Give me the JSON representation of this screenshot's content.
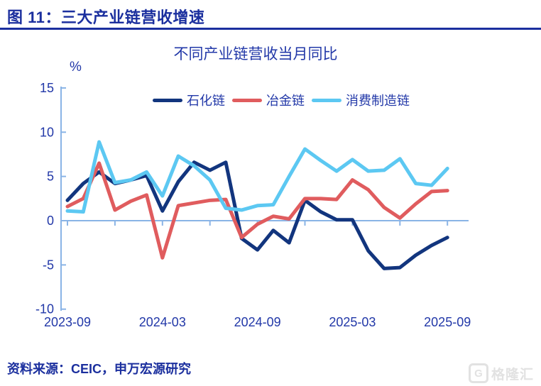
{
  "header": {
    "title": "图 11：三大产业链营收增速"
  },
  "chart": {
    "title": "不同产业链营收当月同比",
    "unit_label": "%"
  },
  "footer": {
    "source": "资料来源：CEIC，申万宏源研究",
    "watermark_icon": "G",
    "watermark_text": "格隆汇"
  },
  "chart_data": {
    "type": "line",
    "title": "不同产业链营收当月同比",
    "ylabel": "%",
    "ylim": [
      -10,
      15
    ],
    "y_ticks": [
      15,
      10,
      5,
      0,
      -5,
      -10
    ],
    "x": [
      "2023-09",
      "2023-10",
      "2023-11",
      "2023-12",
      "2024-01",
      "2024-02",
      "2024-03",
      "2024-04",
      "2024-05",
      "2024-06",
      "2024-07",
      "2024-08",
      "2024-09",
      "2024-10",
      "2024-11",
      "2024-12",
      "2025-01",
      "2025-02",
      "2025-03",
      "2025-04",
      "2025-05",
      "2025-06",
      "2025-07",
      "2025-08",
      "2025-09"
    ],
    "x_tick_label_indices": [
      0,
      6,
      12,
      18,
      24
    ],
    "x_tick_labels": [
      "2023-09",
      "2024-03",
      "2024-09",
      "2025-03",
      "2025-09"
    ],
    "minor_tick_every": 3,
    "grid": false,
    "legend_position": "top",
    "axis_color": "#8ab4e6",
    "series": [
      {
        "name": "石化链",
        "color": "#12357e",
        "values": [
          2.3,
          4.2,
          5.5,
          4.2,
          4.6,
          5.1,
          1.1,
          4.4,
          6.6,
          5.7,
          6.6,
          -2.0,
          -3.3,
          -1.1,
          -2.5,
          2.3,
          1.0,
          0.1,
          0.1,
          -3.4,
          -5.4,
          -5.3,
          -3.9,
          -2.8,
          -1.9
        ]
      },
      {
        "name": "冶金链",
        "color": "#e05c5e",
        "values": [
          1.6,
          2.5,
          6.5,
          1.2,
          2.2,
          2.9,
          -4.2,
          1.7,
          2.0,
          2.3,
          2.4,
          -1.9,
          -0.4,
          0.5,
          0.2,
          2.5,
          2.5,
          2.4,
          4.6,
          3.5,
          1.5,
          0.3,
          1.9,
          3.3,
          3.4
        ]
      },
      {
        "name": "消费制造链",
        "color": "#5cc8f2",
        "values": [
          1.1,
          1.0,
          8.9,
          4.3,
          4.6,
          5.5,
          2.8,
          7.3,
          6.2,
          4.6,
          1.4,
          1.2,
          1.7,
          1.8,
          5.0,
          8.1,
          6.8,
          5.6,
          6.9,
          5.6,
          5.7,
          7.0,
          4.2,
          4.0,
          5.9
        ]
      }
    ]
  }
}
